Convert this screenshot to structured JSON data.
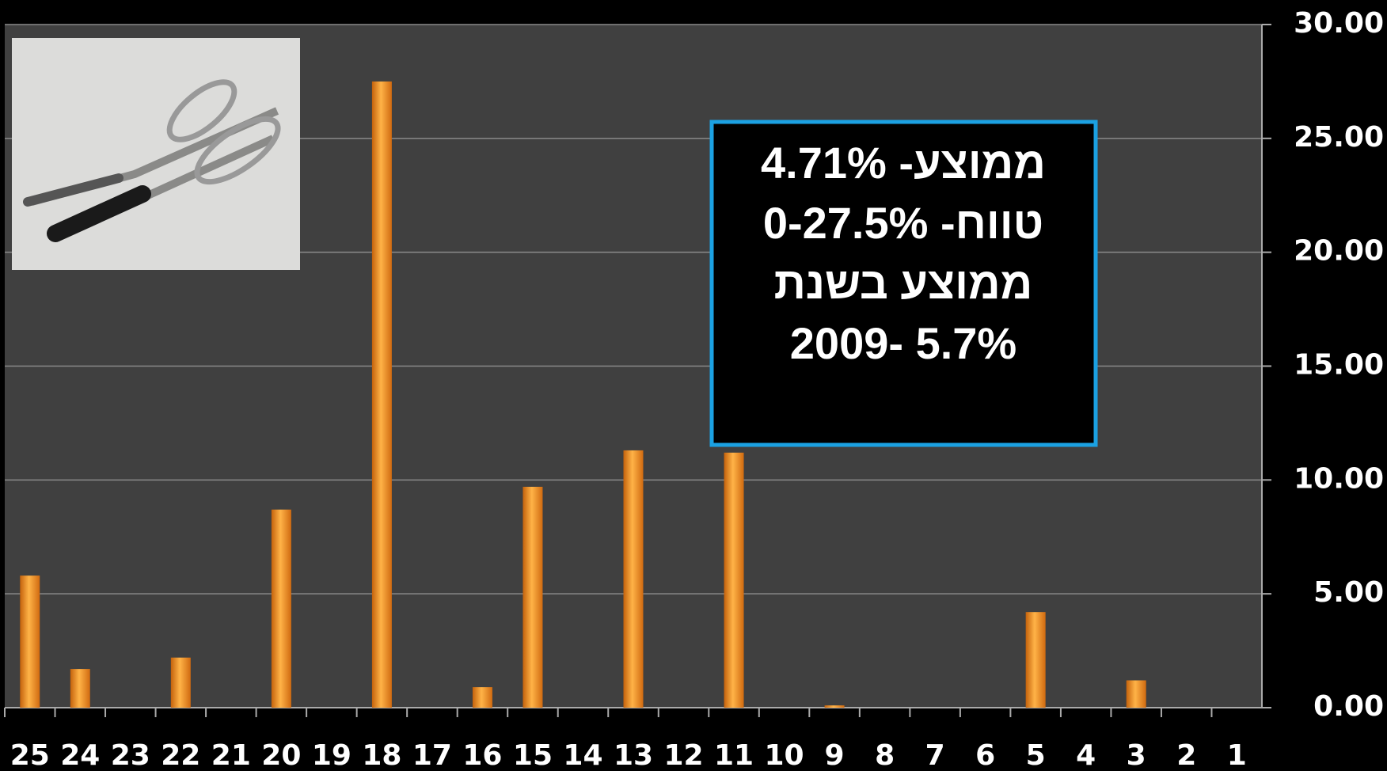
{
  "chart_data": {
    "type": "bar",
    "categories": [
      "25",
      "24",
      "23",
      "22",
      "21",
      "20",
      "19",
      "18",
      "17",
      "16",
      "15",
      "14",
      "13",
      "12",
      "11",
      "10",
      "9",
      "8",
      "7",
      "6",
      "5",
      "4",
      "3",
      "2",
      "1"
    ],
    "values": [
      5.8,
      1.7,
      0,
      2.2,
      0,
      8.7,
      0,
      27.5,
      0,
      0.9,
      9.7,
      0,
      11.3,
      0,
      11.2,
      0,
      0.1,
      0,
      0,
      0,
      4.2,
      0,
      1.2,
      0,
      0
    ],
    "color": "#f39a2b",
    "ylim": [
      0,
      30
    ],
    "yticks": [
      {
        "value": 0,
        "label": "0.00"
      },
      {
        "value": 5,
        "label": "5.00"
      },
      {
        "value": 10,
        "label": "10.00"
      },
      {
        "value": 15,
        "label": "15.00"
      },
      {
        "value": 20,
        "label": "20.00"
      },
      {
        "value": 25,
        "label": "25.00"
      },
      {
        "value": 30,
        "label": "30.00"
      }
    ],
    "grid": true,
    "annotations": [
      "ממוצע- 4.71%",
      "טווח- 0-27.5%",
      "ממוצע בשנת",
      "2009- 5.7%"
    ]
  }
}
